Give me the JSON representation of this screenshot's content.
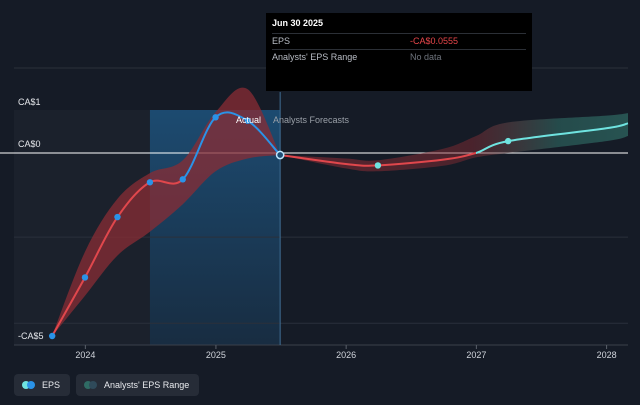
{
  "colors": {
    "background": "#151b26",
    "actual_line": "#2a93e8",
    "forecast_negative": "#e0474c",
    "forecast_positive": "#6fe3e0",
    "range_negative": "#8a2c34",
    "range_positive": "#2f6b64",
    "actual_band": "#1d4d74",
    "past_shade": "#1b212c"
  },
  "chart_data": {
    "type": "line",
    "y_axis_labels": [
      "CA$1",
      "CA$0",
      "-CA$5"
    ],
    "ylim": [
      -5,
      1
    ],
    "xlim": [
      "2023-06-15",
      "2028-03-01"
    ],
    "x_ticks": [
      {
        "label": "2024",
        "date": "2024-01-01"
      },
      {
        "label": "2025",
        "date": "2025-01-01"
      },
      {
        "label": "2026",
        "date": "2026-01-01"
      },
      {
        "label": "2027",
        "date": "2027-01-01"
      },
      {
        "label": "2028",
        "date": "2028-01-01"
      }
    ],
    "region_labels": {
      "actual": "Actual",
      "forecast": "Analysts Forecasts"
    },
    "divider_date": "2025-06-30",
    "past_shade_start": "2024-06-30",
    "series": [
      {
        "name": "EPS",
        "points": [
          {
            "date": "2023-09-30",
            "value": -5.0
          },
          {
            "date": "2023-12-31",
            "value": -3.4
          },
          {
            "date": "2024-03-31",
            "value": -1.75
          },
          {
            "date": "2024-06-30",
            "value": -0.8
          },
          {
            "date": "2024-09-30",
            "value": -0.72
          },
          {
            "date": "2024-12-31",
            "value": 0.42
          },
          {
            "date": "2025-03-31",
            "value": 0.38
          },
          {
            "date": "2025-06-30",
            "value": -0.0555
          }
        ]
      },
      {
        "name": "EPS forecast",
        "points": [
          {
            "date": "2025-06-30",
            "value": -0.0555
          },
          {
            "date": "2025-12-31",
            "value": -0.3
          },
          {
            "date": "2026-03-31",
            "value": -0.34
          },
          {
            "date": "2026-09-30",
            "value": -0.18
          },
          {
            "date": "2026-12-31",
            "value": 0.0
          },
          {
            "date": "2027-03-31",
            "value": 0.14
          },
          {
            "date": "2027-12-31",
            "value": 0.29
          },
          {
            "date": "2028-03-01",
            "value": 0.35
          }
        ]
      },
      {
        "name": "Analysts' EPS Range",
        "points": [
          {
            "date": "2023-09-30",
            "low": -5.0,
            "high": -5.0
          },
          {
            "date": "2023-12-31",
            "low": -3.9,
            "high": -2.7
          },
          {
            "date": "2024-03-31",
            "low": -2.8,
            "high": -1.25
          },
          {
            "date": "2024-06-30",
            "low": -2.15,
            "high": -0.55
          },
          {
            "date": "2024-09-30",
            "low": -1.4,
            "high": -0.2
          },
          {
            "date": "2024-12-31",
            "low": -0.5,
            "high": 0.48
          },
          {
            "date": "2025-03-31",
            "low": -0.15,
            "high": 0.75
          },
          {
            "date": "2025-06-30",
            "low": -0.0555,
            "high": -0.0555
          },
          {
            "date": "2025-12-31",
            "low": -0.42,
            "high": -0.15
          },
          {
            "date": "2026-03-31",
            "low": -0.5,
            "high": -0.2
          },
          {
            "date": "2026-09-30",
            "low": -0.35,
            "high": 0.05
          },
          {
            "date": "2026-12-31",
            "low": -0.12,
            "high": 0.2
          },
          {
            "date": "2027-03-31",
            "low": 0.0,
            "high": 0.36
          },
          {
            "date": "2027-12-31",
            "low": 0.14,
            "high": 0.44
          },
          {
            "date": "2028-03-01",
            "low": 0.2,
            "high": 0.47
          }
        ]
      }
    ],
    "markers": [
      {
        "series": "EPS",
        "dates": [
          "2023-09-30",
          "2023-12-31",
          "2024-03-31",
          "2024-06-30",
          "2024-09-30",
          "2024-12-31",
          "2025-03-31"
        ]
      },
      {
        "series": "EPS forecast",
        "dates": [
          "2026-03-31",
          "2027-03-31"
        ]
      }
    ],
    "highlight_point": {
      "date": "2025-06-30",
      "value": -0.0555
    }
  },
  "tooltip": {
    "date": "Jun 30 2025",
    "rows": [
      {
        "key": "EPS",
        "value": "-CA$0.0555"
      },
      {
        "key": "Analysts' EPS Range",
        "value": "No data"
      }
    ]
  },
  "legend": {
    "items": [
      {
        "label": "EPS",
        "icon": "eps-legend-icon"
      },
      {
        "label": "Analysts' EPS Range",
        "icon": "range-legend-icon"
      }
    ]
  }
}
